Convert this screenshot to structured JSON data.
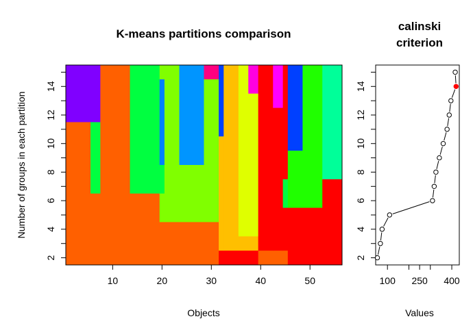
{
  "chart_data": [
    {
      "type": "heatmap",
      "title": "K-means partitions comparison",
      "xlabel": "Objects",
      "ylabel": "Number of groups in each partition",
      "x_ticks": [
        10,
        20,
        30,
        40,
        50
      ],
      "y_ticks": [
        2,
        4,
        6,
        8,
        10,
        12,
        14
      ],
      "xlim": [
        0.5,
        56.5
      ],
      "ylim": [
        1.5,
        15.5
      ],
      "cells": [
        {
          "x0": 0.5,
          "x1": 7.5,
          "y0": 11.5,
          "y1": 15.5,
          "color": "#8000ff"
        },
        {
          "x0": 0.5,
          "x1": 5.5,
          "y0": 1.5,
          "y1": 11.5,
          "color": "#ff6000"
        },
        {
          "x0": 5.5,
          "x1": 7.5,
          "y0": 6.5,
          "y1": 11.5,
          "color": "#00ff40"
        },
        {
          "x0": 5.5,
          "x1": 7.5,
          "y0": 1.5,
          "y1": 6.5,
          "color": "#ff6000"
        },
        {
          "x0": 7.5,
          "x1": 13.5,
          "y0": 1.5,
          "y1": 15.5,
          "color": "#ff6000"
        },
        {
          "x0": 13.5,
          "x1": 19.5,
          "y0": 6.5,
          "y1": 15.5,
          "color": "#00ff40"
        },
        {
          "x0": 13.5,
          "x1": 19.5,
          "y0": 1.5,
          "y1": 6.5,
          "color": "#ff6000"
        },
        {
          "x0": 19.5,
          "x1": 20.5,
          "y0": 14.5,
          "y1": 15.5,
          "color": "#80ff00"
        },
        {
          "x0": 19.5,
          "x1": 20.5,
          "y0": 8.5,
          "y1": 14.5,
          "color": "#0080ff"
        },
        {
          "x0": 19.5,
          "x1": 20.5,
          "y0": 6.5,
          "y1": 8.5,
          "color": "#00ff40"
        },
        {
          "x0": 19.5,
          "x1": 20.5,
          "y0": 4.5,
          "y1": 6.5,
          "color": "#80ff00"
        },
        {
          "x0": 19.5,
          "x1": 20.5,
          "y0": 1.5,
          "y1": 4.5,
          "color": "#ff6000"
        },
        {
          "x0": 20.5,
          "x1": 23.5,
          "y0": 4.5,
          "y1": 15.5,
          "color": "#80ff00"
        },
        {
          "x0": 20.5,
          "x1": 23.5,
          "y0": 1.5,
          "y1": 4.5,
          "color": "#ff6000"
        },
        {
          "x0": 23.5,
          "x1": 28.5,
          "y0": 8.5,
          "y1": 15.5,
          "color": "#0095ff"
        },
        {
          "x0": 23.5,
          "x1": 28.5,
          "y0": 4.5,
          "y1": 8.5,
          "color": "#80ff00"
        },
        {
          "x0": 23.5,
          "x1": 28.5,
          "y0": 1.5,
          "y1": 4.5,
          "color": "#ff6000"
        },
        {
          "x0": 28.5,
          "x1": 31.5,
          "y0": 14.5,
          "y1": 15.5,
          "color": "#ff0080"
        },
        {
          "x0": 28.5,
          "x1": 31.5,
          "y0": 4.5,
          "y1": 14.5,
          "color": "#80ff00"
        },
        {
          "x0": 28.5,
          "x1": 31.5,
          "y0": 1.5,
          "y1": 4.5,
          "color": "#ff6000"
        },
        {
          "x0": 31.5,
          "x1": 32.5,
          "y0": 10.5,
          "y1": 15.5,
          "color": "#0040ff"
        },
        {
          "x0": 31.5,
          "x1": 32.5,
          "y0": 2.5,
          "y1": 10.5,
          "color": "#ffbf00"
        },
        {
          "x0": 31.5,
          "x1": 32.5,
          "y0": 1.5,
          "y1": 2.5,
          "color": "#ff0000"
        },
        {
          "x0": 32.5,
          "x1": 35.5,
          "y0": 2.5,
          "y1": 15.5,
          "color": "#ffbf00"
        },
        {
          "x0": 32.5,
          "x1": 35.5,
          "y0": 1.5,
          "y1": 2.5,
          "color": "#ff0000"
        },
        {
          "x0": 35.5,
          "x1": 37.5,
          "y0": 3.5,
          "y1": 15.5,
          "color": "#dfff00"
        },
        {
          "x0": 35.5,
          "x1": 37.5,
          "y0": 2.5,
          "y1": 3.5,
          "color": "#ffbf00"
        },
        {
          "x0": 35.5,
          "x1": 37.5,
          "y0": 1.5,
          "y1": 2.5,
          "color": "#ff0000"
        },
        {
          "x0": 37.5,
          "x1": 39.5,
          "y0": 13.5,
          "y1": 15.5,
          "color": "#ff00e0"
        },
        {
          "x0": 37.5,
          "x1": 39.5,
          "y0": 3.5,
          "y1": 13.5,
          "color": "#dfff00"
        },
        {
          "x0": 37.5,
          "x1": 39.5,
          "y0": 2.5,
          "y1": 3.5,
          "color": "#ffbf00"
        },
        {
          "x0": 37.5,
          "x1": 39.5,
          "y0": 1.5,
          "y1": 2.5,
          "color": "#ff0000"
        },
        {
          "x0": 39.5,
          "x1": 42.5,
          "y0": 2.5,
          "y1": 15.5,
          "color": "#ff0000"
        },
        {
          "x0": 39.5,
          "x1": 42.5,
          "y0": 1.5,
          "y1": 2.5,
          "color": "#ff6000"
        },
        {
          "x0": 42.5,
          "x1": 44.5,
          "y0": 12.5,
          "y1": 15.5,
          "color": "#ff00ff"
        },
        {
          "x0": 42.5,
          "x1": 44.5,
          "y0": 2.5,
          "y1": 12.5,
          "color": "#ff0000"
        },
        {
          "x0": 42.5,
          "x1": 44.5,
          "y0": 1.5,
          "y1": 2.5,
          "color": "#ff6000"
        },
        {
          "x0": 44.5,
          "x1": 45.5,
          "y0": 7.5,
          "y1": 15.5,
          "color": "#ff0000"
        },
        {
          "x0": 44.5,
          "x1": 45.5,
          "y0": 5.5,
          "y1": 7.5,
          "color": "#00ff40"
        },
        {
          "x0": 44.5,
          "x1": 45.5,
          "y0": 2.5,
          "y1": 5.5,
          "color": "#ff0000"
        },
        {
          "x0": 44.5,
          "x1": 45.5,
          "y0": 1.5,
          "y1": 2.5,
          "color": "#ff6000"
        },
        {
          "x0": 45.5,
          "x1": 48.5,
          "y0": 9.5,
          "y1": 15.5,
          "color": "#0040ff"
        },
        {
          "x0": 45.5,
          "x1": 48.5,
          "y0": 5.5,
          "y1": 9.5,
          "color": "#20ff00"
        },
        {
          "x0": 45.5,
          "x1": 48.5,
          "y0": 1.5,
          "y1": 5.5,
          "color": "#ff0000"
        },
        {
          "x0": 48.5,
          "x1": 52.5,
          "y0": 5.5,
          "y1": 15.5,
          "color": "#20ff00"
        },
        {
          "x0": 48.5,
          "x1": 52.5,
          "y0": 1.5,
          "y1": 5.5,
          "color": "#ff0000"
        },
        {
          "x0": 52.5,
          "x1": 56.5,
          "y0": 7.5,
          "y1": 15.5,
          "color": "#00ff99"
        },
        {
          "x0": 52.5,
          "x1": 56.5,
          "y0": 1.5,
          "y1": 7.5,
          "color": "#ff0000"
        }
      ]
    },
    {
      "type": "scatter",
      "title": "calinski\ncriterion",
      "title_lines": [
        "calinski",
        "criterion"
      ],
      "xlabel": "Values",
      "ylabel": "",
      "x_ticks": [
        100,
        200,
        250,
        300,
        400
      ],
      "x_tick_labels": [
        "100",
        "",
        "250",
        "",
        "400"
      ],
      "y_ticks": [
        2,
        4,
        6,
        8,
        10,
        12,
        14
      ],
      "xlim": [
        45,
        435
      ],
      "ylim": [
        1.5,
        15.5
      ],
      "points": [
        {
          "x": 53,
          "y": 2
        },
        {
          "x": 67,
          "y": 3
        },
        {
          "x": 75,
          "y": 4
        },
        {
          "x": 110,
          "y": 5
        },
        {
          "x": 310,
          "y": 6
        },
        {
          "x": 318,
          "y": 7
        },
        {
          "x": 326,
          "y": 8
        },
        {
          "x": 342,
          "y": 9
        },
        {
          "x": 360,
          "y": 10
        },
        {
          "x": 378,
          "y": 11
        },
        {
          "x": 388,
          "y": 12
        },
        {
          "x": 396,
          "y": 13
        },
        {
          "x": 420,
          "y": 14
        },
        {
          "x": 416,
          "y": 15
        }
      ],
      "highlight_index": 12,
      "highlight_color": "#ff0000"
    }
  ]
}
